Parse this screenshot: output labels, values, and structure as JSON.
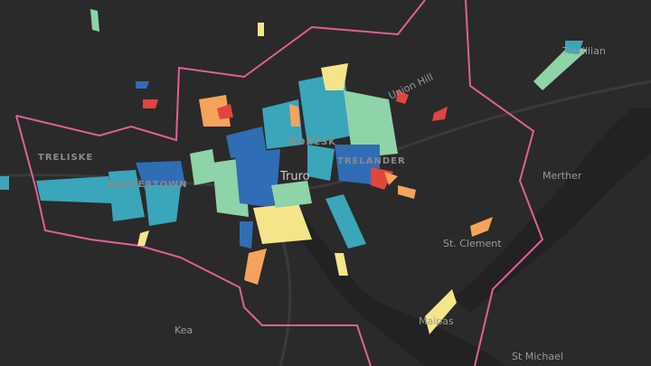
{
  "labels": {
    "tresillian": "Tresillian",
    "union_hill": "Union Hill",
    "moresk": "MORESK",
    "truro": "Truro",
    "trelander": "TRELANDER",
    "treliske": "TRELISKE",
    "highertown": "HIGHERTOWN",
    "merther": "Merther",
    "st_clement": "St. Clement",
    "malpas": "Malpas",
    "kea": "Kea",
    "st_michael": "St Michael"
  }
}
